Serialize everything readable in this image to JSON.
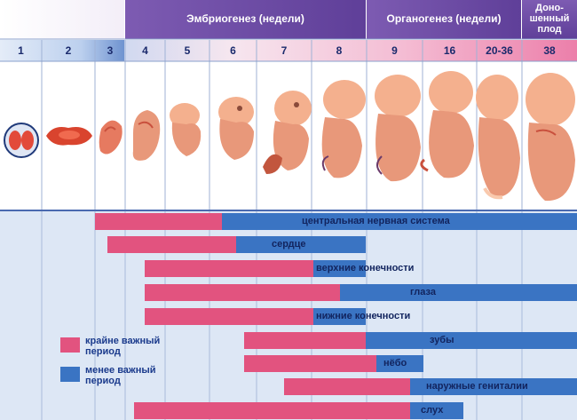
{
  "headers": {
    "embryo": "Эмбриогенез (недели)",
    "organ": "Органогенез (недели)",
    "term": [
      "Доно-",
      "шенный",
      "плод"
    ]
  },
  "weeks": [
    "1",
    "2",
    "3",
    "4",
    "5",
    "6",
    "7",
    "8",
    "9",
    "16",
    "20-36",
    "38"
  ],
  "organs": [
    {
      "label": "центральная нервная система",
      "critical_weeks": "3–5",
      "sensitive_weeks": "6–38"
    },
    {
      "label": "сердце",
      "critical_weeks": "3–6",
      "sensitive_weeks": "6–8"
    },
    {
      "label": "верхние конечности",
      "critical_weeks": "4–8",
      "sensitive_weeks": "8–9"
    },
    {
      "label": "глаза",
      "critical_weeks": "4–8",
      "sensitive_weeks": "8–38"
    },
    {
      "label": "нижние конечности",
      "critical_weeks": "4–8",
      "sensitive_weeks": "8–9"
    },
    {
      "label": "зубы",
      "critical_weeks": "7–9",
      "sensitive_weeks": "9–38"
    },
    {
      "label": "нёбо",
      "critical_weeks": "7–9",
      "sensitive_weeks": "9–16"
    },
    {
      "label": "наружные гениталии",
      "critical_weeks": "8–16",
      "sensitive_weeks": "16–38"
    },
    {
      "label": "слух",
      "critical_weeks": "4–16",
      "sensitive_weeks": "16–20"
    }
  ],
  "legend": {
    "critical": [
      "крайне важный",
      "период"
    ],
    "less": [
      "менее важный",
      "период"
    ]
  },
  "colors": {
    "critical": "#e2537f",
    "less": "#3a74c3",
    "header": "#6a4aa0",
    "grid_bg": "#dde6f5"
  }
}
